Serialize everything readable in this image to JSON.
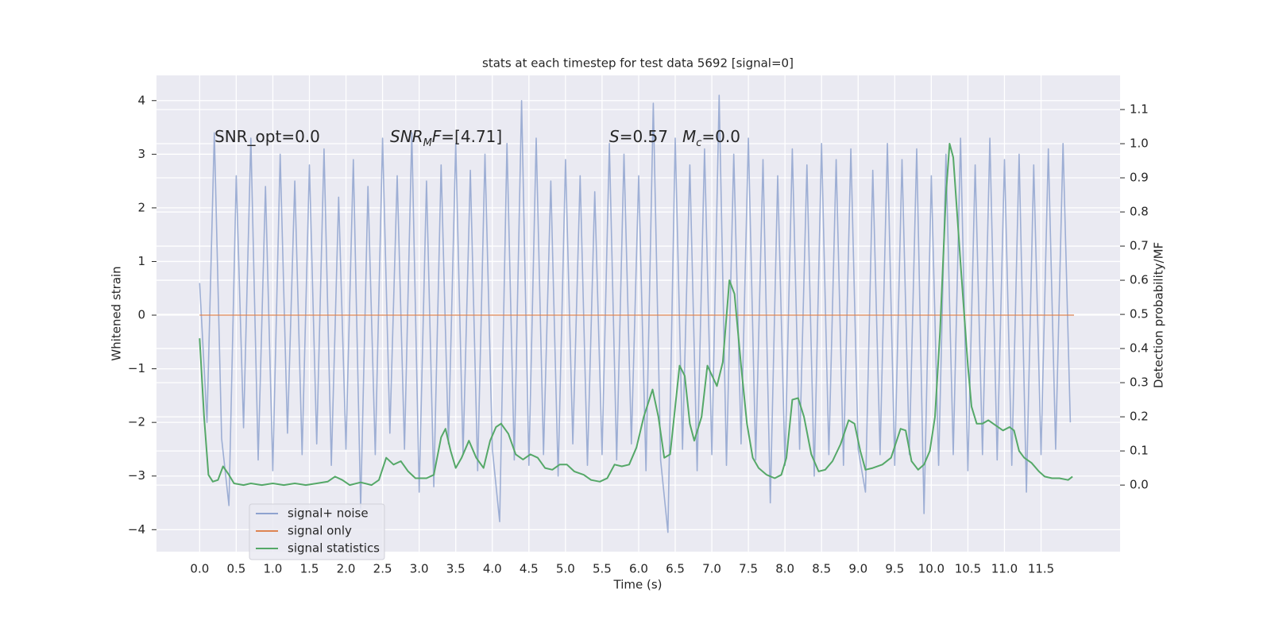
{
  "chart_data": {
    "type": "line",
    "title": "stats at each timestep for test data 5692 [signal=0]",
    "xlabel": "Time (s)",
    "ylabel": "Whitened strain",
    "y2label": "Detection probability/MF",
    "annotations": [
      [
        {
          "t": "SNR_opt=0.0"
        }
      ],
      [
        {
          "t": "SNR",
          "i": true
        },
        {
          "t": "M",
          "i": true,
          "sub": true
        },
        {
          "t": "F",
          "i": true
        },
        {
          "t": "=[4.71]"
        }
      ],
      [
        {
          "t": "S",
          "i": true
        },
        {
          "t": "=0.57"
        }
      ],
      [
        {
          "t": "M",
          "i": true
        },
        {
          "t": "c",
          "i": true,
          "sub": true
        },
        {
          "t": "=0.0"
        }
      ]
    ],
    "x": [
      0,
      0.1,
      0.2,
      0.3,
      0.4,
      0.5,
      0.6,
      0.7,
      0.8,
      0.9,
      1.0,
      1.1,
      1.2,
      1.3,
      1.4,
      1.5,
      1.6,
      1.7,
      1.8,
      1.9,
      2.0,
      2.1,
      2.2,
      2.3,
      2.4,
      2.5,
      2.6,
      2.7,
      2.8,
      2.9,
      3.0,
      3.1,
      3.2,
      3.3,
      3.4,
      3.5,
      3.6,
      3.7,
      3.8,
      3.9,
      4.0,
      4.1,
      4.2,
      4.3,
      4.4,
      4.5,
      4.6,
      4.7,
      4.8,
      4.9,
      5.0,
      5.1,
      5.2,
      5.3,
      5.4,
      5.5,
      5.6,
      5.7,
      5.8,
      5.9,
      6.0,
      6.1,
      6.2,
      6.3,
      6.4,
      6.5,
      6.6,
      6.7,
      6.8,
      6.9,
      7.0,
      7.1,
      7.2,
      7.3,
      7.4,
      7.5,
      7.6,
      7.7,
      7.8,
      7.9,
      8.0,
      8.1,
      8.2,
      8.3,
      8.4,
      8.5,
      8.6,
      8.7,
      8.8,
      8.9,
      9.0,
      9.1,
      9.2,
      9.3,
      9.4,
      9.5,
      9.6,
      9.7,
      9.8,
      9.9,
      10.0,
      10.1,
      10.2,
      10.3,
      10.4,
      10.5,
      10.6,
      10.7,
      10.8,
      10.9,
      11.0,
      11.1,
      11.2,
      11.3,
      11.4,
      11.5,
      11.6,
      11.7,
      11.8,
      11.9
    ],
    "series": [
      {
        "name": "signal+ noise",
        "color": "#8fa3cf",
        "values": [
          0.6,
          -2.0,
          3.4,
          -2.3,
          -3.55,
          2.6,
          -2.1,
          3.3,
          -2.7,
          2.4,
          -2.9,
          3.0,
          -2.2,
          2.5,
          -2.6,
          2.8,
          -2.4,
          3.1,
          -2.8,
          2.2,
          -2.5,
          2.9,
          -3.6,
          2.4,
          -2.6,
          3.3,
          -2.2,
          2.6,
          -2.5,
          3.4,
          -3.3,
          2.5,
          -3.2,
          2.8,
          -2.4,
          3.2,
          -2.6,
          2.7,
          -2.9,
          3.0,
          -2.5,
          -3.85,
          3.2,
          -2.7,
          4.0,
          -2.8,
          3.3,
          -2.6,
          2.5,
          -3.0,
          2.9,
          -2.4,
          2.6,
          -2.8,
          2.3,
          -2.6,
          3.2,
          -2.7,
          3.0,
          -2.4,
          2.6,
          -2.9,
          3.95,
          -2.7,
          -4.05,
          3.3,
          -2.5,
          2.8,
          -2.9,
          3.1,
          -2.6,
          4.1,
          -2.8,
          3.0,
          -2.4,
          3.3,
          -2.7,
          2.9,
          -3.5,
          2.6,
          -2.8,
          3.1,
          -2.5,
          2.8,
          -3.0,
          3.2,
          -2.6,
          2.9,
          -2.8,
          3.1,
          -2.5,
          -3.3,
          2.7,
          -2.6,
          3.2,
          -2.8,
          2.9,
          -2.6,
          3.1,
          -3.7,
          2.6,
          -2.8,
          3.0,
          -2.6,
          3.3,
          -2.9,
          2.8,
          -2.6,
          3.3,
          -2.7,
          2.9,
          -2.8,
          3.0,
          -3.3,
          2.8,
          -2.6,
          3.1,
          -2.5,
          3.2,
          -2.0
        ]
      },
      {
        "name": "signal only",
        "color": "#dd8452",
        "x": [
          0,
          11.95
        ],
        "values": [
          0,
          0
        ]
      },
      {
        "name": "signal statistics",
        "color": "#55a868",
        "axis": "y2",
        "x": [
          0.0,
          0.06,
          0.12,
          0.18,
          0.25,
          0.32,
          0.4,
          0.47,
          0.6,
          0.7,
          0.85,
          1.0,
          1.15,
          1.3,
          1.45,
          1.6,
          1.75,
          1.85,
          1.95,
          2.05,
          2.2,
          2.35,
          2.45,
          2.55,
          2.65,
          2.75,
          2.85,
          2.95,
          3.1,
          3.2,
          3.3,
          3.36,
          3.43,
          3.5,
          3.58,
          3.68,
          3.78,
          3.88,
          3.97,
          4.05,
          4.12,
          4.22,
          4.32,
          4.42,
          4.52,
          4.62,
          4.72,
          4.82,
          4.92,
          5.02,
          5.12,
          5.25,
          5.35,
          5.47,
          5.57,
          5.67,
          5.77,
          5.87,
          5.97,
          6.07,
          6.19,
          6.27,
          6.35,
          6.43,
          6.56,
          6.63,
          6.7,
          6.76,
          6.86,
          6.94,
          7.07,
          7.15,
          7.24,
          7.31,
          7.4,
          7.48,
          7.56,
          7.64,
          7.75,
          7.86,
          7.95,
          8.02,
          8.1,
          8.18,
          8.26,
          8.36,
          8.46,
          8.55,
          8.65,
          8.76,
          8.87,
          8.95,
          9.03,
          9.1,
          9.2,
          9.33,
          9.45,
          9.58,
          9.65,
          9.73,
          9.82,
          9.9,
          9.98,
          10.05,
          10.12,
          10.2,
          10.25,
          10.3,
          10.4,
          10.5,
          10.55,
          10.62,
          10.7,
          10.78,
          10.88,
          10.98,
          11.07,
          11.13,
          11.2,
          11.27,
          11.37,
          11.47,
          11.55,
          11.65,
          11.75,
          11.87,
          11.93
        ],
        "values": [
          0.43,
          0.2,
          0.03,
          0.01,
          0.015,
          0.055,
          0.03,
          0.005,
          0.0,
          0.005,
          0.0,
          0.005,
          0.0,
          0.005,
          0.0,
          0.005,
          0.01,
          0.025,
          0.015,
          0.0,
          0.008,
          0.0,
          0.015,
          0.08,
          0.06,
          0.07,
          0.04,
          0.02,
          0.02,
          0.03,
          0.14,
          0.165,
          0.1,
          0.05,
          0.08,
          0.13,
          0.08,
          0.05,
          0.13,
          0.17,
          0.18,
          0.15,
          0.09,
          0.075,
          0.09,
          0.08,
          0.05,
          0.045,
          0.06,
          0.06,
          0.04,
          0.03,
          0.015,
          0.01,
          0.02,
          0.06,
          0.055,
          0.06,
          0.11,
          0.2,
          0.28,
          0.2,
          0.08,
          0.09,
          0.35,
          0.32,
          0.18,
          0.13,
          0.2,
          0.35,
          0.29,
          0.36,
          0.6,
          0.56,
          0.35,
          0.18,
          0.08,
          0.05,
          0.03,
          0.02,
          0.03,
          0.08,
          0.25,
          0.255,
          0.2,
          0.09,
          0.04,
          0.045,
          0.07,
          0.12,
          0.19,
          0.18,
          0.1,
          0.045,
          0.05,
          0.06,
          0.08,
          0.165,
          0.16,
          0.07,
          0.045,
          0.06,
          0.1,
          0.2,
          0.45,
          0.85,
          1.0,
          0.96,
          0.65,
          0.35,
          0.23,
          0.18,
          0.18,
          0.19,
          0.175,
          0.16,
          0.17,
          0.16,
          0.1,
          0.08,
          0.065,
          0.04,
          0.025,
          0.02,
          0.02,
          0.015,
          0.025
        ]
      }
    ],
    "xlim": [
      -0.59,
      12.58
    ],
    "xticks": [
      {
        "value": 0,
        "label": "0.0"
      },
      {
        "value": 0.5,
        "label": "0.5"
      },
      {
        "value": 1,
        "label": "1.0"
      },
      {
        "value": 1.5,
        "label": "1.5"
      },
      {
        "value": 2,
        "label": "2.0"
      },
      {
        "value": 2.5,
        "label": "2.5"
      },
      {
        "value": 3,
        "label": "3.0"
      },
      {
        "value": 3.5,
        "label": "3.5"
      },
      {
        "value": 4,
        "label": "4.0"
      },
      {
        "value": 4.5,
        "label": "4.5"
      },
      {
        "value": 5,
        "label": "5.0"
      },
      {
        "value": 5.5,
        "label": "5.5"
      },
      {
        "value": 6,
        "label": "6.0"
      },
      {
        "value": 6.5,
        "label": "6.5"
      },
      {
        "value": 7,
        "label": "7.0"
      },
      {
        "value": 7.5,
        "label": "7.5"
      },
      {
        "value": 8,
        "label": "8.0"
      },
      {
        "value": 8.5,
        "label": "8.5"
      },
      {
        "value": 9,
        "label": "9.0"
      },
      {
        "value": 9.5,
        "label": "9.5"
      },
      {
        "value": 10,
        "label": "10.0"
      },
      {
        "value": 10.5,
        "label": "10.5"
      },
      {
        "value": 11,
        "label": "11.0"
      },
      {
        "value": 11.5,
        "label": "11.5"
      }
    ],
    "ylim": [
      -4.41,
      4.47
    ],
    "yticks": [
      {
        "value": -4,
        "label": "−4"
      },
      {
        "value": -3,
        "label": "−3"
      },
      {
        "value": -2,
        "label": "−2"
      },
      {
        "value": -1,
        "label": "−1"
      },
      0,
      1,
      2,
      3,
      4
    ],
    "y2lim": [
      -0.195,
      1.2
    ],
    "y2ticks": [
      {
        "value": 0,
        "label": "0.0"
      },
      {
        "value": 0.1,
        "label": "0.1"
      },
      {
        "value": 0.2,
        "label": "0.2"
      },
      {
        "value": 0.3,
        "label": "0.3"
      },
      {
        "value": 0.4,
        "label": "0.4"
      },
      {
        "value": 0.5,
        "label": "0.5"
      },
      {
        "value": 0.6,
        "label": "0.6"
      },
      {
        "value": 0.7,
        "label": "0.7"
      },
      {
        "value": 0.8,
        "label": "0.8"
      },
      {
        "value": 0.9,
        "label": "0.9"
      },
      {
        "value": 1,
        "label": "1.0"
      },
      {
        "value": 1.1,
        "label": "1.1"
      }
    ],
    "grid": true,
    "legend": "lower left"
  }
}
